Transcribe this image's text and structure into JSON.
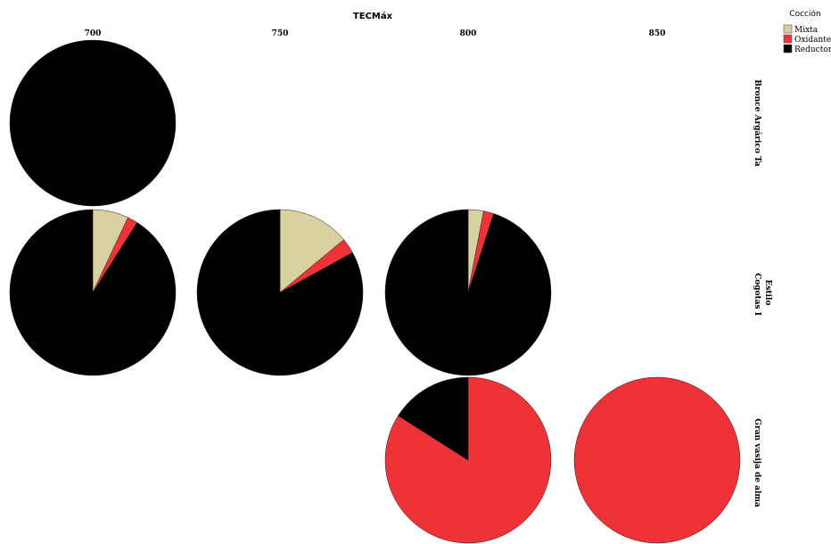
{
  "chart_data": {
    "type": "pie",
    "column_variable": "TECMáx",
    "row_variable": "Estilo",
    "columns": [
      "700",
      "750",
      "800",
      "850"
    ],
    "rows": [
      "Bronce Argárico Ta",
      "Cogotas I",
      "Gran vasija de alma"
    ],
    "legend": {
      "title": "Cocción",
      "placement": "top-right",
      "entries": [
        {
          "label": "Mixta",
          "color": "#d8d0a0"
        },
        {
          "label": "Oxidante",
          "color": "#ee3338"
        },
        {
          "label": "Reductor",
          "color": "#000000"
        }
      ]
    },
    "series_order": [
      "Mixta",
      "Oxidante",
      "Reductor"
    ],
    "cells": [
      {
        "row": "Bronce Argárico Ta",
        "column": "700",
        "values": {
          "Mixta": 0,
          "Oxidante": 0,
          "Reductor": 100
        }
      },
      {
        "row": "Cogotas I",
        "column": "700",
        "values": {
          "Mixta": 7,
          "Oxidante": 2,
          "Reductor": 91
        }
      },
      {
        "row": "Cogotas I",
        "column": "750",
        "values": {
          "Mixta": 14,
          "Oxidante": 3,
          "Reductor": 83
        }
      },
      {
        "row": "Cogotas I",
        "column": "800",
        "values": {
          "Mixta": 3,
          "Oxidante": 2,
          "Reductor": 95
        }
      },
      {
        "row": "Gran vasija de alma",
        "column": "800",
        "values": {
          "Mixta": 0,
          "Oxidante": 84,
          "Reductor": 16
        }
      },
      {
        "row": "Gran vasija de alma",
        "column": "850",
        "values": {
          "Mixta": 0,
          "Oxidante": 100,
          "Reductor": 0
        }
      }
    ],
    "value_unit": "percent of cell"
  }
}
